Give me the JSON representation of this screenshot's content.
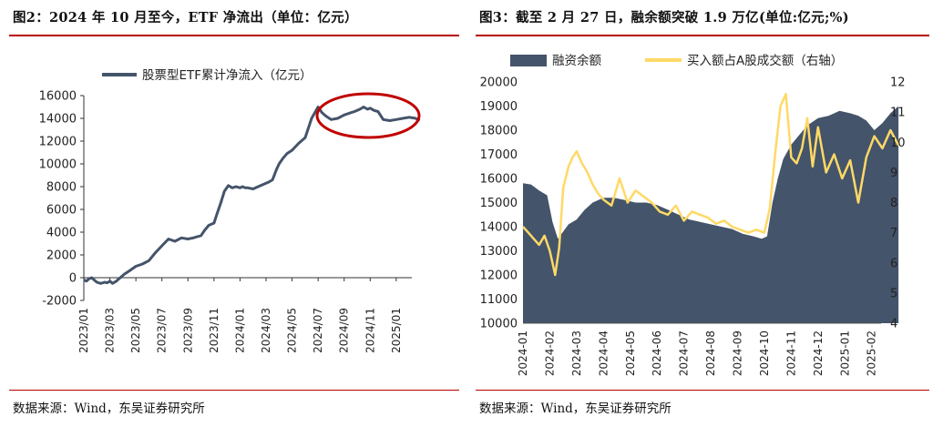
{
  "figures": [
    {
      "title": "图2：2024 年 10 月至今，ETF 净流出（单位：亿元）",
      "source": "数据来源：Wind，东吴证券研究所"
    },
    {
      "title": "图3：截至 2 月 27 日，融余额突破 1.9 万亿(单位:亿元;%)",
      "source": "数据来源：Wind，东吴证券研究所"
    }
  ],
  "chart_data": [
    {
      "type": "line",
      "title": "",
      "legend_position": "top-center",
      "x_ticks": [
        "2023/01",
        "2023/03",
        "2023/05",
        "2023/07",
        "2023/09",
        "2023/11",
        "2024/01",
        "2024/03",
        "2024/05",
        "2024/07",
        "2024/09",
        "2024/11",
        "2025/01"
      ],
      "ylim": [
        -2000,
        16000
      ],
      "y_ticks": [
        -2000,
        0,
        2000,
        4000,
        6000,
        8000,
        10000,
        12000,
        14000,
        16000
      ],
      "grid": false,
      "annotation": "red ellipse highlighting peak 2024/10–2025/02",
      "series": [
        {
          "name": "股票型ETF累计净流入（亿元）",
          "color": "#44546a",
          "x": [
            0,
            0.2,
            0.4,
            0.6,
            0.8,
            1.0,
            1.3,
            1.6,
            1.8,
            2.0,
            2.2,
            2.5,
            2.8,
            3.1,
            3.5,
            4.0,
            4.5,
            5.0,
            5.5,
            6.0,
            6.5,
            7.0,
            7.5,
            8.0,
            8.4,
            8.7,
            9.0,
            9.3,
            9.6,
            10.0,
            10.2,
            10.5,
            10.8,
            11.1,
            11.4,
            11.7,
            12.0,
            12.2,
            12.4,
            12.6,
            13.0,
            13.4,
            13.8,
            14.2,
            14.5,
            14.8,
            15.0,
            15.3,
            15.6,
            16.0,
            16.5,
            17.0,
            17.5,
            18.0,
            18.3,
            18.6,
            19.0,
            19.5,
            20.0,
            20.5,
            20.8,
            21.0,
            21.2,
            21.5,
            21.8,
            22.0,
            22.3,
            22.6,
            23.0,
            23.5,
            24.0,
            24.5,
            25.0,
            25.5,
            25.8
          ],
          "y": [
            -200,
            -300,
            -100,
            0,
            -200,
            -400,
            -500,
            -400,
            -450,
            -300,
            -500,
            -300,
            0,
            300,
            600,
            1000,
            1200,
            1500,
            2200,
            2800,
            3400,
            3200,
            3500,
            3400,
            3500,
            3600,
            3700,
            4200,
            4600,
            4800,
            5500,
            6500,
            7600,
            8100,
            7900,
            8000,
            7900,
            8000,
            7900,
            7900,
            7800,
            8000,
            8200,
            8400,
            8600,
            9500,
            10000,
            10500,
            10900,
            11200,
            11800,
            12300,
            14000,
            15000,
            14500,
            14200,
            13900,
            14000,
            14300,
            14500,
            14600,
            14700,
            14800,
            15000,
            14800,
            14900,
            14700,
            14600,
            13900,
            13800,
            13900,
            14000,
            14100,
            14000,
            13800
          ]
        }
      ]
    },
    {
      "type": "area+line",
      "title": "",
      "legend_position": "top",
      "x_ticks": [
        "2024-01",
        "2024-02",
        "2024-03",
        "2024-04",
        "2024-05",
        "2024-06",
        "2024-07",
        "2024-08",
        "2024-09",
        "2024-10",
        "2024-11",
        "2024-12",
        "2025-01",
        "2025-02"
      ],
      "ylim_left": [
        10000,
        20000
      ],
      "y_ticks_left": [
        10000,
        11000,
        12000,
        13000,
        14000,
        15000,
        16000,
        17000,
        18000,
        19000,
        20000
      ],
      "ylim_right": [
        4,
        12
      ],
      "y_ticks_right": [
        4,
        5,
        6,
        7,
        8,
        9,
        10,
        11,
        12
      ],
      "grid": false,
      "series": [
        {
          "name": "融资余额",
          "axis": "left",
          "color": "#44546a",
          "x": [
            0,
            0.3,
            0.6,
            0.9,
            1.1,
            1.3,
            1.5,
            1.7,
            2.0,
            2.3,
            2.6,
            3.0,
            3.4,
            3.8,
            4.2,
            4.6,
            5.0,
            5.4,
            5.8,
            6.2,
            6.6,
            7.0,
            7.4,
            7.8,
            8.2,
            8.6,
            8.9,
            9.1,
            9.3,
            9.5,
            9.7,
            10.0,
            10.3,
            10.6,
            11.0,
            11.4,
            11.8,
            12.2,
            12.5,
            12.8,
            13.1,
            13.4,
            13.7,
            14.0
          ],
          "y": [
            15800,
            15750,
            15500,
            15300,
            14200,
            13500,
            13800,
            14100,
            14300,
            14700,
            15000,
            15200,
            15200,
            15100,
            15000,
            15000,
            14900,
            14700,
            14500,
            14300,
            14200,
            14100,
            14000,
            13900,
            13700,
            13600,
            13500,
            13600,
            15000,
            16000,
            16800,
            17400,
            17800,
            18200,
            18500,
            18600,
            18800,
            18700,
            18600,
            18400,
            18000,
            18300,
            18700,
            19000
          ]
        },
        {
          "name": "买入额占A股成交额（右轴）",
          "axis": "right",
          "color": "#ffd966",
          "x": [
            0,
            0.2,
            0.4,
            0.6,
            0.8,
            1.0,
            1.1,
            1.2,
            1.35,
            1.5,
            1.7,
            1.85,
            2.0,
            2.2,
            2.4,
            2.6,
            2.8,
            3.0,
            3.3,
            3.6,
            3.9,
            4.2,
            4.5,
            4.8,
            5.1,
            5.4,
            5.7,
            6.0,
            6.3,
            6.6,
            6.9,
            7.2,
            7.5,
            7.8,
            8.1,
            8.4,
            8.7,
            9.0,
            9.2,
            9.4,
            9.6,
            9.8,
            10.0,
            10.2,
            10.4,
            10.6,
            10.8,
            11.0,
            11.3,
            11.6,
            11.9,
            12.2,
            12.5,
            12.8,
            13.1,
            13.4,
            13.7,
            14.0
          ],
          "y": [
            7.2,
            7.0,
            6.8,
            6.6,
            6.9,
            6.4,
            6.0,
            5.6,
            6.5,
            8.5,
            9.2,
            9.5,
            9.7,
            9.3,
            9.0,
            8.6,
            8.3,
            8.1,
            7.9,
            8.8,
            8.0,
            8.4,
            8.2,
            8.0,
            7.7,
            7.6,
            7.9,
            7.4,
            7.7,
            7.6,
            7.5,
            7.3,
            7.4,
            7.2,
            7.1,
            7.0,
            7.1,
            7.0,
            7.8,
            9.6,
            11.2,
            11.6,
            9.5,
            9.3,
            9.8,
            10.8,
            9.2,
            10.5,
            9.0,
            9.6,
            8.8,
            9.4,
            8.0,
            9.5,
            10.2,
            9.8,
            10.4,
            9.9
          ]
        }
      ]
    }
  ]
}
